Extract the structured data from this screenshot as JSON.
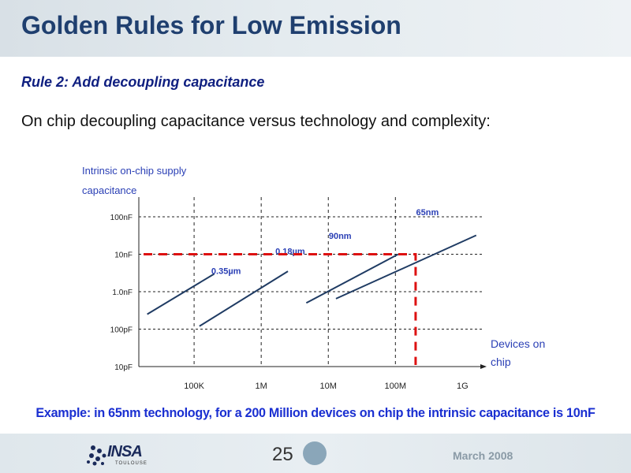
{
  "slide": {
    "title": "Golden Rules for Low Emission",
    "rule": "Rule 2: Add decoupling capacitance",
    "subtitle": "On chip decoupling capacitance versus technology and complexity:",
    "example": "Example: in 65nm technology, for a 200 Million devices on chip the intrinsic capacitance is 10nF"
  },
  "footer": {
    "page_number": "25",
    "date": "March 2008",
    "logo_text": "INSA",
    "logo_subtext": "TOULOUSE"
  },
  "colors": {
    "title": "#1f3f6f",
    "accent_blue": "#1a2fd1",
    "series_line": "#1f3b63",
    "highlight": "#dd1111"
  },
  "chart_data": {
    "type": "line",
    "ylabel": [
      "Intrinsic on-chip supply",
      "capacitance"
    ],
    "xlabel": [
      "Devices on",
      "chip"
    ],
    "x_ticks": [
      {
        "value": 100000,
        "label": "100K"
      },
      {
        "value": 1000000,
        "label": "1M"
      },
      {
        "value": 10000000,
        "label": "10M"
      },
      {
        "value": 100000000,
        "label": "100M"
      },
      {
        "value": 1000000000,
        "label": "1G"
      }
    ],
    "y_ticks": [
      {
        "value": 1e-11,
        "label": "10pF"
      },
      {
        "value": 1e-10,
        "label": "100pF"
      },
      {
        "value": 1e-09,
        "label": "1.0nF"
      },
      {
        "value": 1e-08,
        "label": "10nF"
      },
      {
        "value": 1e-07,
        "label": "100nF"
      }
    ],
    "x_scale": "log",
    "y_scale": "log",
    "grid": true,
    "series": [
      {
        "name": "0.35µm",
        "points": [
          [
            20000,
            2.5e-10
          ],
          [
            200000,
            3e-09
          ]
        ]
      },
      {
        "name": "0.18µm",
        "points": [
          [
            120000,
            1.2e-10
          ],
          [
            2500000,
            3.5e-09
          ]
        ]
      },
      {
        "name": "90nm",
        "points": [
          [
            4700000,
            5e-10
          ],
          [
            110000000,
            1e-08
          ]
        ]
      },
      {
        "name": "65nm",
        "points": [
          [
            13000000,
            6.5e-10
          ],
          [
            1600000000,
            3.2e-08
          ]
        ]
      }
    ],
    "series_labels": [
      {
        "text": "0.35µm",
        "x": 300000,
        "y": 3e-09
      },
      {
        "text": "0.18µm",
        "x": 2700000,
        "y": 1e-08
      },
      {
        "text": "90nm",
        "x": 15000000,
        "y": 2.6e-08
      },
      {
        "text": "65nm",
        "x": 300000000,
        "y": 1.1e-07
      }
    ],
    "highlight": {
      "x": 200000000,
      "y": 1e-08
    }
  }
}
